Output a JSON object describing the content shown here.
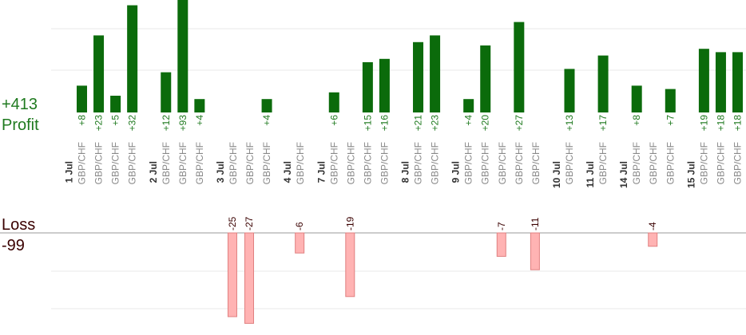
{
  "chart_data": {
    "type": "bar",
    "profit_total": "+413",
    "profit_label": "Profit",
    "loss_label": "Loss",
    "loss_total": "-99",
    "colors": {
      "profit_fill": "#0b6b0b",
      "profit_text": "#1f7a1f",
      "loss_fill": "#ffb3b3",
      "loss_stroke": "#e08080",
      "loss_text": "#3a0000",
      "date_text": "#333333",
      "pair_text": "#888888",
      "grid": "#e8e8e8"
    },
    "ylim_profit": [
      0,
      30
    ],
    "ylim_loss": [
      -27,
      0
    ],
    "trades": [
      {
        "date": "1 Jul",
        "pair": "GBP/CHF",
        "value": 8
      },
      {
        "date": "",
        "pair": "GBP/CHF",
        "value": 23
      },
      {
        "date": "",
        "pair": "GBP/CHF",
        "value": 5
      },
      {
        "date": "",
        "pair": "GBP/CHF",
        "value": 32
      },
      {
        "date": "2 Jul",
        "pair": "GBP/CHF",
        "value": 12
      },
      {
        "date": "",
        "pair": "GBP/CHF",
        "value": 93
      },
      {
        "date": "",
        "pair": "GBP/CHF",
        "value": 4
      },
      {
        "date": "3 Jul",
        "pair": "GBP/CHF",
        "value": -25
      },
      {
        "date": "",
        "pair": "GBP/CHF",
        "value": -27
      },
      {
        "date": "",
        "pair": "GBP/CHF",
        "value": 4
      },
      {
        "date": "4 Jul",
        "pair": "GBP/CHF",
        "value": -6
      },
      {
        "date": "7 Jul",
        "pair": "GBP/CHF",
        "value": 6
      },
      {
        "date": "",
        "pair": "GBP/CHF",
        "value": -19
      },
      {
        "date": "",
        "pair": "GBP/CHF",
        "value": 15
      },
      {
        "date": "",
        "pair": "GBP/CHF",
        "value": 16
      },
      {
        "date": "8 Jul",
        "pair": "GBP/CHF",
        "value": 21
      },
      {
        "date": "",
        "pair": "GBP/CHF",
        "value": 23
      },
      {
        "date": "9 Jul",
        "pair": "GBP/CHF",
        "value": 4
      },
      {
        "date": "",
        "pair": "GBP/CHF",
        "value": 20
      },
      {
        "date": "",
        "pair": "GBP/CHF",
        "value": -7
      },
      {
        "date": "",
        "pair": "GBP/CHF",
        "value": 27
      },
      {
        "date": "",
        "pair": "GBP/CHF",
        "value": -11
      },
      {
        "date": "10 Jul",
        "pair": "GBP/CHF",
        "value": 13
      },
      {
        "date": "11 Jul",
        "pair": "GBP/CHF",
        "value": 17
      },
      {
        "date": "14 Jul",
        "pair": "GBP/CHF",
        "value": 8
      },
      {
        "date": "",
        "pair": "GBP/CHF",
        "value": -4
      },
      {
        "date": "",
        "pair": "GBP/CHF",
        "value": 7
      },
      {
        "date": "15 Jul",
        "pair": "GBP/CHF",
        "value": 19
      },
      {
        "date": "",
        "pair": "GBP/CHF",
        "value": 18
      },
      {
        "date": "",
        "pair": "GBP/CHF",
        "value": 18
      }
    ]
  }
}
